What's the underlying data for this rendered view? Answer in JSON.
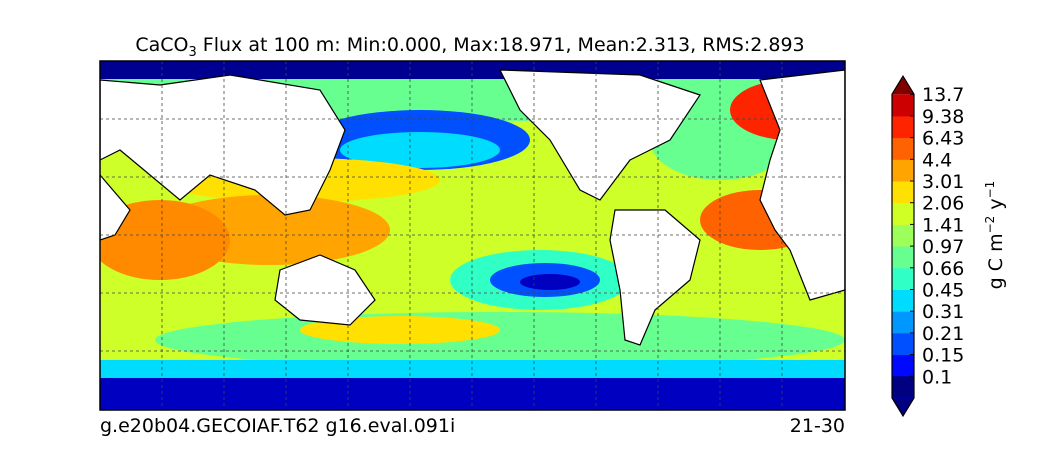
{
  "header": {
    "title_main": "CaCO",
    "title_sub": "3",
    "title_rest": " Flux at 100 m: Min:0.000, Max:18.971, Mean:2.313, RMS:2.893"
  },
  "colorbar": {
    "levels": [
      {
        "value": 0.1,
        "label": "0.1"
      },
      {
        "value": 0.15,
        "label": "0.15"
      },
      {
        "value": 0.21,
        "label": "0.21"
      },
      {
        "value": 0.31,
        "label": "0.31"
      },
      {
        "value": 0.45,
        "label": "0.45"
      },
      {
        "value": 0.66,
        "label": "0.66"
      },
      {
        "value": 0.97,
        "label": "0.97"
      },
      {
        "value": 1.41,
        "label": "1.41"
      },
      {
        "value": 2.06,
        "label": "2.06"
      },
      {
        "value": 3.01,
        "label": "3.01"
      },
      {
        "value": 4.4,
        "label": "4.4"
      },
      {
        "value": 6.43,
        "label": "6.43"
      },
      {
        "value": 9.38,
        "label": "9.38"
      },
      {
        "value": 13.7,
        "label": "13.7"
      }
    ],
    "colors": [
      "#000080",
      "#0000c0",
      "#0008ff",
      "#0050ff",
      "#0098ff",
      "#00dcfe",
      "#30ffc6",
      "#66ff90",
      "#9cff5a",
      "#d0ff26",
      "#ffe000",
      "#ffa400",
      "#ff6200",
      "#ff2400",
      "#cc0000",
      "#800000"
    ],
    "label": "g C m",
    "label_exp1": "−2",
    "label_mid": " y",
    "label_exp2": "−1"
  },
  "footer": {
    "left": "g.e20b04.GECOIAF.T62 g16.eval.091i",
    "right": "21-30"
  }
}
